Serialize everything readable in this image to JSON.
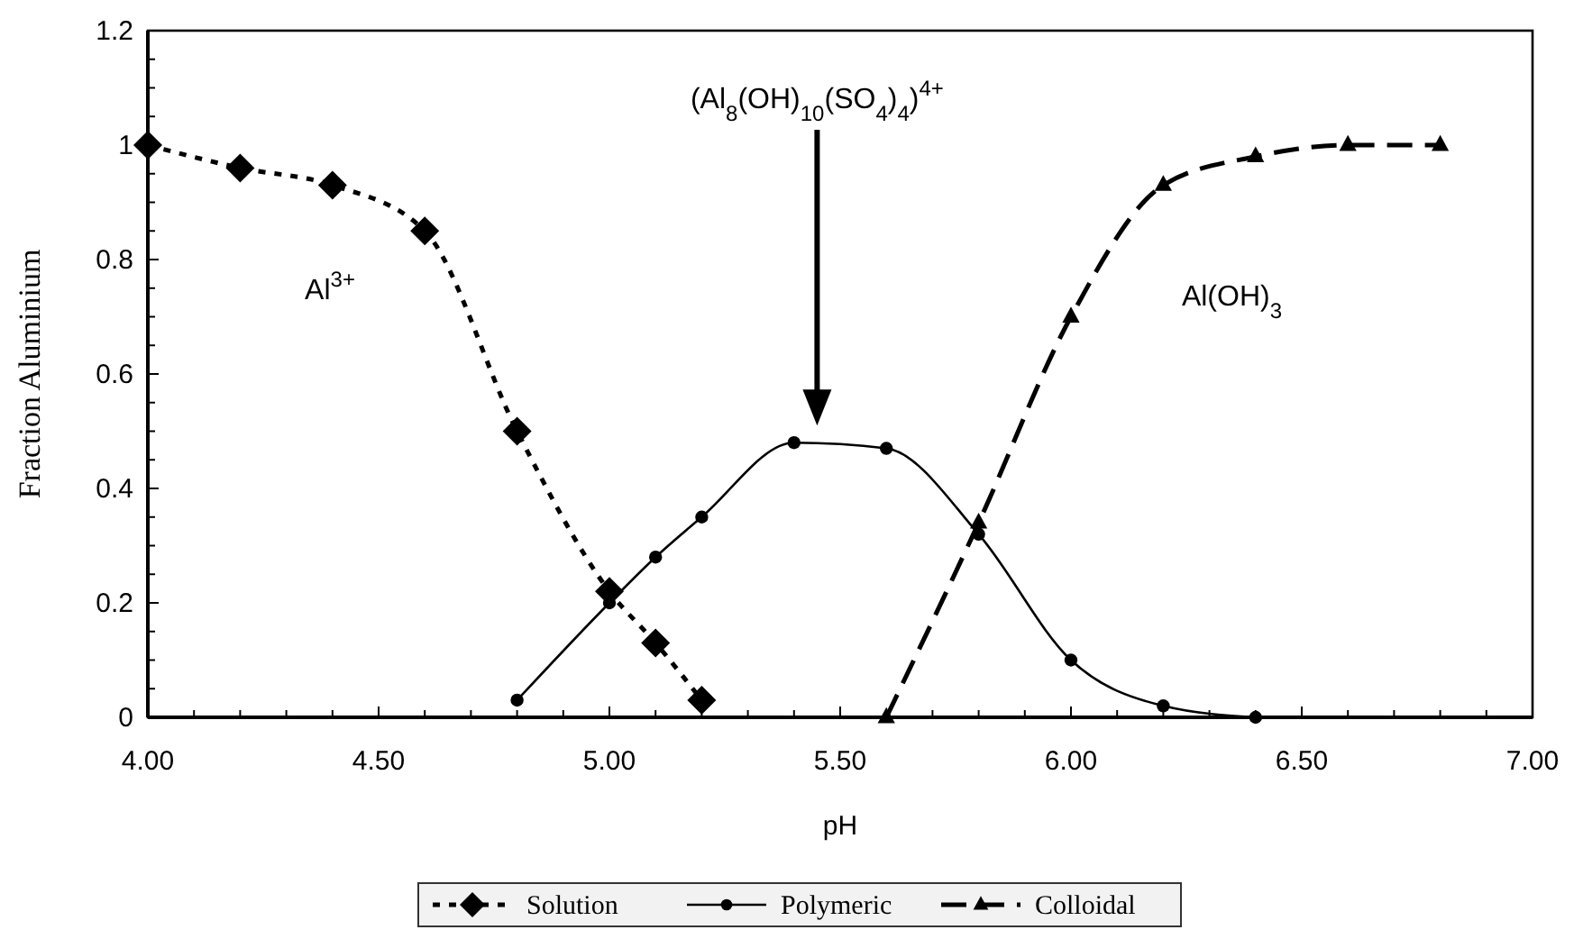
{
  "chart_data": {
    "type": "line",
    "xlabel": "pH",
    "ylabel": "Fraction Aluminium",
    "xlim": [
      4,
      7
    ],
    "ylim": [
      0,
      1.2
    ],
    "xticks": [
      {
        "value": 4,
        "label": "4.00"
      },
      {
        "value": 4.1,
        "label": null
      },
      {
        "value": 4.2,
        "label": null
      },
      {
        "value": 4.3,
        "label": null
      },
      {
        "value": 4.4,
        "label": null
      },
      {
        "value": 4.5,
        "label": "4.50"
      },
      {
        "value": 4.6,
        "label": null
      },
      {
        "value": 4.7,
        "label": null
      },
      {
        "value": 4.8,
        "label": null
      },
      {
        "value": 4.9,
        "label": null
      },
      {
        "value": 5,
        "label": "5.00"
      },
      {
        "value": 5.1,
        "label": null
      },
      {
        "value": 5.2,
        "label": null
      },
      {
        "value": 5.3,
        "label": null
      },
      {
        "value": 5.4,
        "label": null
      },
      {
        "value": 5.5,
        "label": "5.50"
      },
      {
        "value": 5.6,
        "label": null
      },
      {
        "value": 5.7,
        "label": null
      },
      {
        "value": 5.8,
        "label": null
      },
      {
        "value": 5.9,
        "label": null
      },
      {
        "value": 6,
        "label": "6.00"
      },
      {
        "value": 6.1,
        "label": null
      },
      {
        "value": 6.2,
        "label": null
      },
      {
        "value": 6.3,
        "label": null
      },
      {
        "value": 6.4,
        "label": null
      },
      {
        "value": 6.5,
        "label": "6.50"
      },
      {
        "value": 6.6,
        "label": null
      },
      {
        "value": 6.7,
        "label": null
      },
      {
        "value": 6.8,
        "label": null
      },
      {
        "value": 6.9,
        "label": null
      },
      {
        "value": 7,
        "label": "7.00"
      }
    ],
    "yticks": [
      0,
      {
        "value": 0.05,
        "label": null
      },
      {
        "value": 0.1,
        "label": null
      },
      {
        "value": 0.15,
        "label": null
      },
      0.2,
      {
        "value": 0.25,
        "label": null
      },
      {
        "value": 0.3,
        "label": null
      },
      {
        "value": 0.35,
        "label": null
      },
      0.4,
      {
        "value": 0.45,
        "label": null
      },
      {
        "value": 0.5,
        "label": null
      },
      {
        "value": 0.55,
        "label": null
      },
      0.6,
      {
        "value": 0.65,
        "label": null
      },
      {
        "value": 0.7,
        "label": null
      },
      {
        "value": 0.75,
        "label": null
      },
      0.8,
      {
        "value": 0.85,
        "label": null
      },
      {
        "value": 0.9,
        "label": null
      },
      {
        "value": 0.95,
        "label": null
      },
      1,
      {
        "value": 1.05,
        "label": null
      },
      {
        "value": 1.1,
        "label": null
      },
      {
        "value": 1.15,
        "label": null
      },
      1.2
    ],
    "grid": false,
    "legend": "bottom",
    "series": [
      {
        "name": "Solution",
        "color": "#000000",
        "marker": "diamond",
        "line_style": "dotted",
        "x": [
          4.0,
          4.2,
          4.4,
          4.6,
          4.8,
          5.0,
          5.1,
          5.2
        ],
        "values": [
          1.0,
          0.96,
          0.93,
          0.85,
          0.5,
          0.22,
          0.13,
          0.03
        ]
      },
      {
        "name": "Polymeric",
        "color": "#000000",
        "marker": "circle",
        "line_style": "solid",
        "x": [
          4.8,
          5.0,
          5.1,
          5.2,
          5.4,
          5.6,
          5.8,
          6.0,
          6.2,
          6.4
        ],
        "values": [
          0.03,
          0.2,
          0.28,
          0.35,
          0.48,
          0.47,
          0.32,
          0.1,
          0.02,
          0.0
        ]
      },
      {
        "name": "Colloidal",
        "color": "#000000",
        "marker": "triangle",
        "line_style": "dashed",
        "x": [
          5.6,
          5.8,
          6.0,
          6.2,
          6.4,
          6.6,
          6.8
        ],
        "values": [
          0.0,
          0.34,
          0.7,
          0.93,
          0.98,
          1.0,
          1.0
        ]
      }
    ],
    "annotations": [
      "Al$^{3+}$",
      "Al(OH)$_{3}$",
      "(Al$_{8}$(OH)$_{10}$(SO$_{4}$)$_{4}$)$^{4+}$"
    ]
  }
}
